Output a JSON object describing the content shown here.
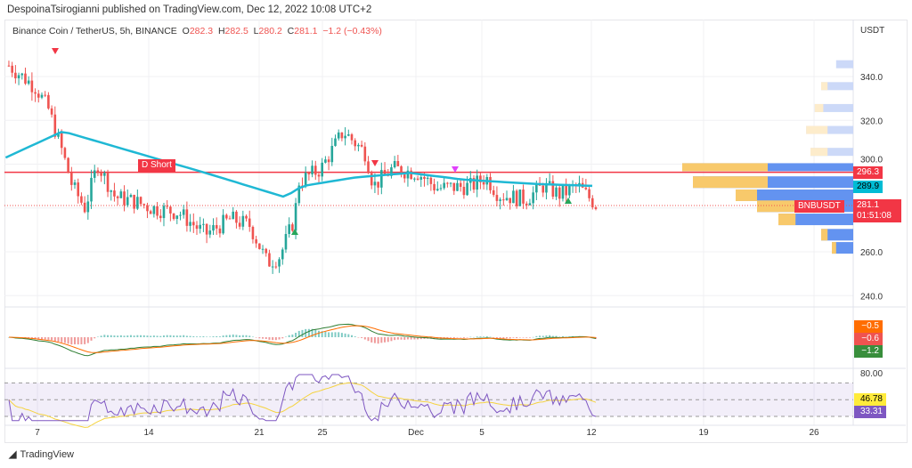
{
  "header": {
    "publisher_line": "DespoinaTsirogianni published on TradingView.com, Dec 12, 2022 10:08 UTC+2"
  },
  "legend": {
    "symbol": "Binance Coin / TetherUS, 5h, BINANCE",
    "o_label": "O",
    "o": "282.3",
    "h_label": "H",
    "h": "282.5",
    "l_label": "L",
    "l": "280.2",
    "c_label": "C",
    "c": "281.1",
    "change": "−1.2 (−0.43%)"
  },
  "price_axis": {
    "currency": "USDT",
    "ticks": [
      "340.0",
      "320.0",
      "300.0",
      "260.0",
      "240.0"
    ]
  },
  "tags": {
    "resistance": "296.3",
    "ma": "289.9",
    "symbol": "BNBUSDT",
    "last": "281.1",
    "countdown": "01:51:08",
    "macd": [
      "−0.5",
      "−0.6",
      "−1.2"
    ],
    "rsi_top": "80.00",
    "rsi_ma": "46.78",
    "rsi": "33.31"
  },
  "signal_label": "D Short",
  "time_axis": [
    "7",
    "14",
    "21",
    "25",
    "Dec",
    "5",
    "12",
    "19",
    "26"
  ],
  "footer": {
    "brand": "TradingView"
  },
  "colors": {
    "up": "#26a69a",
    "down": "#ef5350",
    "ma": "#1fb8d4",
    "resistance": "#f23645",
    "rsi": "#7e57c2",
    "rsi_ma": "#f5d33f"
  },
  "chart_data": {
    "type": "candlestick",
    "title": "Binance Coin / TetherUS, 5h, BINANCE",
    "ylim": [
      230,
      360
    ],
    "x_unit": "days since Nov 7 2022",
    "approx_close": [
      [
        -1.8,
        345
      ],
      [
        -0.1,
        335
      ],
      [
        0.7,
        325
      ],
      [
        1.6,
        305
      ],
      [
        2.2,
        290
      ],
      [
        3,
        280
      ],
      [
        3.8,
        300
      ],
      [
        4.9,
        285
      ],
      [
        6.1,
        283
      ],
      [
        7.2,
        280
      ],
      [
        8.9,
        278
      ],
      [
        10.6,
        268
      ],
      [
        12.2,
        275
      ],
      [
        13.4,
        272
      ],
      [
        14.5,
        255
      ],
      [
        15.3,
        258
      ],
      [
        16.2,
        275
      ],
      [
        16.5,
        292
      ],
      [
        17.9,
        298
      ],
      [
        19.3,
        315
      ],
      [
        20.7,
        305
      ],
      [
        21.2,
        290
      ],
      [
        22.4,
        298
      ],
      [
        24,
        296
      ],
      [
        25.2,
        289
      ],
      [
        27.4,
        290
      ],
      [
        28.3,
        294
      ],
      [
        29.1,
        286
      ],
      [
        30.8,
        284
      ],
      [
        31.9,
        290
      ],
      [
        33,
        286
      ],
      [
        34.1,
        290
      ],
      [
        35.3,
        281
      ]
    ],
    "ma_line": [
      [
        -2,
        303
      ],
      [
        1.6,
        315
      ],
      [
        4.9,
        308
      ],
      [
        10.6,
        296
      ],
      [
        15.6,
        285
      ],
      [
        16.7,
        290
      ],
      [
        20.1,
        294
      ],
      [
        23.5,
        296
      ],
      [
        26.8,
        293
      ],
      [
        31.3,
        291
      ],
      [
        35.3,
        290
      ]
    ],
    "resistance": 296.3,
    "volume_profile": {
      "rows": [
        [
          345,
          0,
          8
        ],
        [
          335,
          3,
          15
        ],
        [
          325,
          4,
          18
        ],
        [
          315,
          10,
          22
        ],
        [
          305,
          8,
          20
        ],
        [
          298,
          40,
          80
        ],
        [
          292,
          35,
          75
        ],
        [
          286,
          10,
          55
        ],
        [
          281,
          20,
          45
        ],
        [
          275,
          8,
          35
        ],
        [
          268,
          3,
          15
        ],
        [
          262,
          2,
          10
        ]
      ]
    },
    "macd": {
      "values": [
        -0.5,
        -0.6,
        -1.2
      ]
    },
    "rsi": {
      "value": 33.31,
      "ma": 46.78,
      "bands": [
        70,
        50,
        30
      ]
    }
  }
}
